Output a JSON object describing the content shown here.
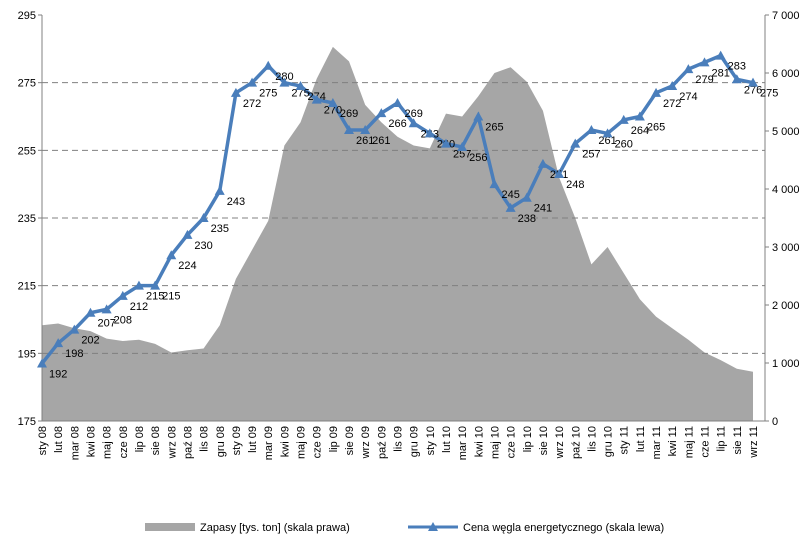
{
  "chart_data": {
    "type": "area-line",
    "categories": [
      "sty 08",
      "lut 08",
      "mar 08",
      "kwi 08",
      "maj 08",
      "cze 08",
      "lip 08",
      "sie 08",
      "wrz 08",
      "paź 08",
      "lis 08",
      "gru 08",
      "sty 09",
      "lut 09",
      "mar 09",
      "kwi 09",
      "maj 09",
      "cze 09",
      "lip 09",
      "sie 09",
      "wrz 09",
      "paź 09",
      "lis 09",
      "gru 09",
      "sty 10",
      "lut 10",
      "mar 10",
      "kwi 10",
      "maj 10",
      "cze 10",
      "lip 10",
      "sie 10",
      "wrz 10",
      "paź 10",
      "lis 10",
      "gru 10",
      "sty 11",
      "lut 11",
      "mar 11",
      "kwi 11",
      "maj 11",
      "cze 11",
      "lip 11",
      "sie 11",
      "wrz 11"
    ],
    "series": [
      {
        "name": "Zapasy [tys. ton] (skala prawa)",
        "color": "#a6a6a6",
        "axis": "y2",
        "values": [
          1650,
          1680,
          1600,
          1550,
          1420,
          1380,
          1400,
          1330,
          1180,
          1220,
          1250,
          1650,
          2450,
          2950,
          3450,
          4750,
          5150,
          5900,
          6450,
          6200,
          5450,
          5150,
          4900,
          4750,
          4700,
          5300,
          5250,
          5600,
          6000,
          6100,
          5850,
          5350,
          4200,
          3500,
          2700,
          3000,
          2550,
          2100,
          1800,
          1600,
          1400,
          1180,
          1050,
          900,
          850
        ]
      },
      {
        "name": "Cena węgla energetycznego (skala lewa)",
        "color": "#4a7ebb",
        "values": [
          192,
          198,
          202,
          207,
          208,
          212,
          215,
          215,
          224,
          230,
          235,
          243,
          272,
          275,
          280,
          275,
          274,
          270,
          269,
          261,
          261,
          266,
          269,
          263,
          260,
          257,
          256,
          265,
          245,
          238,
          241,
          251,
          248,
          257,
          261,
          260,
          264,
          265,
          272,
          274,
          279,
          281,
          283,
          276,
          275
        ]
      }
    ],
    "ylim": [
      175,
      295
    ],
    "yticks": [
      175,
      195,
      215,
      235,
      255,
      275,
      295
    ],
    "y2lim": [
      0,
      7000
    ],
    "y2ticks": [
      0,
      {
        "value": 1000,
        "label": "1 000"
      },
      {
        "value": 2000,
        "label": "2 000"
      },
      {
        "value": 3000,
        "label": "3 000"
      },
      {
        "value": 4000,
        "label": "4 000"
      },
      {
        "value": 5000,
        "label": "5 000"
      },
      {
        "value": 6000,
        "label": "6 000"
      },
      {
        "value": 7000,
        "label": "7 000"
      }
    ],
    "grid": true,
    "legend": "bottom"
  }
}
